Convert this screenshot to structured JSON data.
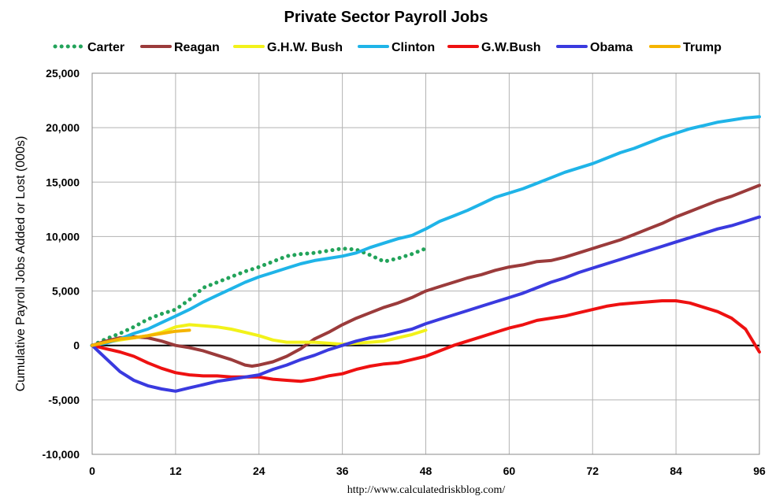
{
  "chart_data": {
    "type": "line",
    "title": "Private Sector Payroll Jobs",
    "ylabel": "Cumulative Payroll Jobs Added or  Lost (000s)",
    "xlabel": "",
    "source": "http://www.calculatedriskblog.com/",
    "xlim": [
      0,
      96
    ],
    "ylim": [
      -10000,
      25000
    ],
    "xticks": [
      0,
      12,
      24,
      36,
      48,
      60,
      72,
      84,
      96
    ],
    "yticks": [
      -10000,
      -5000,
      0,
      5000,
      10000,
      15000,
      20000,
      25000
    ],
    "xtick_labels": [
      "0",
      "12",
      "24",
      "36",
      "48",
      "60",
      "72",
      "84",
      "96"
    ],
    "ytick_labels": [
      "-10,000",
      "-5,000",
      "0",
      "5,000",
      "10,000",
      "15,000",
      "20,000",
      "25,000"
    ],
    "grid": true,
    "legend_position": "top",
    "series": [
      {
        "name": "Carter",
        "color": "#22a35a",
        "dash": "dotted",
        "x": [
          0,
          2,
          4,
          6,
          8,
          10,
          12,
          14,
          16,
          18,
          20,
          22,
          24,
          26,
          28,
          30,
          32,
          34,
          36,
          38,
          40,
          42,
          44,
          46,
          48
        ],
        "y": [
          0,
          600,
          1100,
          1700,
          2400,
          2900,
          3300,
          4200,
          5300,
          5800,
          6300,
          6800,
          7200,
          7700,
          8200,
          8400,
          8500,
          8700,
          8900,
          8800,
          8300,
          7700,
          8000,
          8400,
          8900
        ]
      },
      {
        "name": "Reagan",
        "color": "#9b3b3b",
        "dash": "solid",
        "x": [
          0,
          2,
          4,
          6,
          8,
          10,
          12,
          14,
          16,
          18,
          20,
          22,
          23,
          24,
          26,
          28,
          30,
          32,
          34,
          36,
          38,
          40,
          42,
          44,
          46,
          48,
          50,
          52,
          54,
          56,
          58,
          60,
          62,
          64,
          66,
          68,
          70,
          72,
          74,
          76,
          78,
          80,
          82,
          84,
          86,
          88,
          90,
          92,
          94,
          96
        ],
        "y": [
          0,
          400,
          700,
          800,
          700,
          400,
          0,
          -200,
          -500,
          -900,
          -1300,
          -1800,
          -1900,
          -1800,
          -1500,
          -1000,
          -300,
          600,
          1200,
          1900,
          2500,
          3000,
          3500,
          3900,
          4400,
          5000,
          5400,
          5800,
          6200,
          6500,
          6900,
          7200,
          7400,
          7700,
          7800,
          8100,
          8500,
          8900,
          9300,
          9700,
          10200,
          10700,
          11200,
          11800,
          12300,
          12800,
          13300,
          13700,
          14200,
          14700
        ]
      },
      {
        "name": "G.H.W. Bush",
        "color": "#f2f21a",
        "dash": "solid",
        "x": [
          0,
          2,
          4,
          6,
          8,
          10,
          12,
          14,
          16,
          18,
          20,
          22,
          24,
          26,
          28,
          30,
          32,
          34,
          36,
          38,
          40,
          42,
          44,
          46,
          48
        ],
        "y": [
          0,
          300,
          500,
          700,
          900,
          1200,
          1700,
          1900,
          1800,
          1700,
          1500,
          1200,
          900,
          500,
          300,
          300,
          300,
          200,
          100,
          200,
          300,
          400,
          700,
          1000,
          1400
        ]
      },
      {
        "name": "Clinton",
        "color": "#1fb4e8",
        "dash": "solid",
        "x": [
          0,
          2,
          4,
          6,
          8,
          10,
          12,
          14,
          16,
          18,
          20,
          22,
          24,
          26,
          28,
          30,
          32,
          34,
          36,
          38,
          40,
          42,
          44,
          46,
          48,
          50,
          52,
          54,
          56,
          58,
          60,
          62,
          64,
          66,
          68,
          70,
          72,
          74,
          76,
          78,
          80,
          82,
          84,
          86,
          88,
          90,
          92,
          94,
          96
        ],
        "y": [
          0,
          200,
          600,
          1100,
          1500,
          2100,
          2700,
          3300,
          4000,
          4600,
          5200,
          5800,
          6300,
          6700,
          7100,
          7500,
          7800,
          8000,
          8200,
          8500,
          9000,
          9400,
          9800,
          10100,
          10700,
          11400,
          11900,
          12400,
          13000,
          13600,
          14000,
          14400,
          14900,
          15400,
          15900,
          16300,
          16700,
          17200,
          17700,
          18100,
          18600,
          19100,
          19500,
          19900,
          20200,
          20500,
          20700,
          20900,
          21000
        ]
      },
      {
        "name": "G.W.Bush",
        "color": "#ee1111",
        "dash": "solid",
        "x": [
          0,
          2,
          4,
          6,
          8,
          10,
          12,
          14,
          16,
          18,
          20,
          22,
          24,
          26,
          28,
          30,
          32,
          34,
          36,
          38,
          40,
          42,
          44,
          46,
          48,
          50,
          52,
          54,
          56,
          58,
          60,
          62,
          64,
          66,
          68,
          70,
          72,
          74,
          76,
          78,
          80,
          82,
          84,
          86,
          88,
          90,
          92,
          94,
          96
        ],
        "y": [
          0,
          -300,
          -600,
          -1000,
          -1600,
          -2100,
          -2500,
          -2700,
          -2800,
          -2800,
          -2900,
          -2900,
          -2900,
          -3100,
          -3200,
          -3300,
          -3100,
          -2800,
          -2600,
          -2200,
          -1900,
          -1700,
          -1600,
          -1300,
          -1000,
          -500,
          0,
          400,
          800,
          1200,
          1600,
          1900,
          2300,
          2500,
          2700,
          3000,
          3300,
          3600,
          3800,
          3900,
          4000,
          4100,
          4100,
          3900,
          3500,
          3100,
          2500,
          1500,
          -600
        ]
      },
      {
        "name": "Obama",
        "color": "#3a3adf",
        "dash": "solid",
        "x": [
          0,
          1,
          2,
          3,
          4,
          6,
          8,
          10,
          12,
          14,
          16,
          18,
          20,
          22,
          24,
          26,
          28,
          30,
          32,
          34,
          36,
          38,
          40,
          42,
          44,
          46,
          48,
          50,
          52,
          54,
          56,
          58,
          60,
          62,
          64,
          66,
          68,
          70,
          72,
          74,
          76,
          78,
          80,
          82,
          84,
          86,
          88,
          90,
          92,
          94,
          96
        ],
        "y": [
          0,
          -600,
          -1200,
          -1800,
          -2400,
          -3200,
          -3700,
          -4000,
          -4200,
          -3900,
          -3600,
          -3300,
          -3100,
          -2900,
          -2700,
          -2200,
          -1800,
          -1300,
          -900,
          -400,
          0,
          400,
          700,
          900,
          1200,
          1500,
          2000,
          2400,
          2800,
          3200,
          3600,
          4000,
          4400,
          4800,
          5300,
          5800,
          6200,
          6700,
          7100,
          7500,
          7900,
          8300,
          8700,
          9100,
          9500,
          9900,
          10300,
          10700,
          11000,
          11400,
          11800
        ]
      },
      {
        "name": "Trump",
        "color": "#f5b400",
        "dash": "solid",
        "x": [
          0,
          2,
          4,
          6,
          8,
          10,
          12,
          14
        ],
        "y": [
          0,
          300,
          600,
          700,
          900,
          1100,
          1300,
          1400
        ]
      }
    ]
  }
}
